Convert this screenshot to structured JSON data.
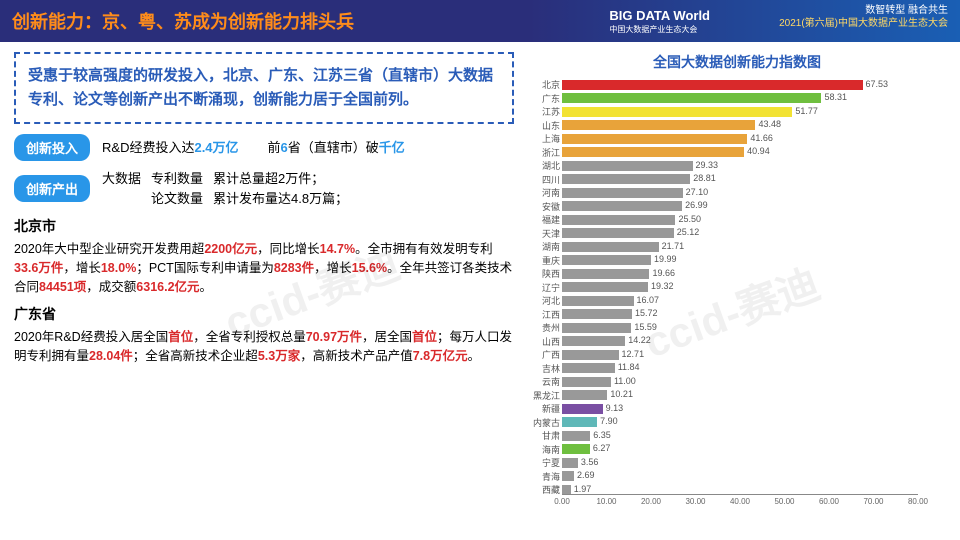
{
  "header": {
    "title": "创新能力：京、粤、苏成为创新能力排头兵",
    "logo_top": "BIG DATA World",
    "logo_sub": "中国大数据产业生态大会",
    "r1": "数智转型 融合共生",
    "r2": "2021(第六届)中国大数据产业生态大会"
  },
  "note": "受惠于较高强度的研发投入，北京、广东、江苏三省（直辖市）大数据专利、论文等创新产出不断涌现，创新能力居于全国前列。",
  "row1": {
    "tag": "创新投入",
    "t1": "R&D经费投入达",
    "v1": "2.4万亿",
    "t2": "前",
    "v2": "6",
    "t3": "省（直辖市）破",
    "v3": "千亿"
  },
  "row2": {
    "tag": "创新产出",
    "pre": "大数据",
    "l1": "专利数量",
    "l2": "论文数量",
    "r1": "累计总量超2万件；",
    "r2": "累计发布量达4.8万篇；"
  },
  "bj": {
    "name": "北京市",
    "p1a": "2020年大中型企业研究开发费用超",
    "v1": "2200亿元",
    "p1b": "，同比增长",
    "v2": "14.7%",
    "p1c": "。全市拥有有效发明专利",
    "v3": "33.6万件",
    "p1d": "，增长",
    "v4": "18.0%",
    "p1e": "；PCT国际专利申请量为",
    "v5": "8283件",
    "p1f": "，增长",
    "v6": "15.6%",
    "p1g": "。全年共签订各类技术合同",
    "v7": "84451项",
    "p1h": "，成交额",
    "v8": "6316.2亿元",
    "p1i": "。"
  },
  "gd": {
    "name": "广东省",
    "p1a": "2020年R&D经费投入居全国",
    "v1": "首位",
    "p1b": "，全省专利授权总量",
    "v2": "70.97万件",
    "p1c": "，居全国",
    "v3": "首位",
    "p1d": "；每万人口发明专利拥有量",
    "v4": "28.04件",
    "p1e": "；全省高新技术企业超",
    "v5": "5.3万家",
    "p1f": "，高新技术产品产值",
    "v6": "7.8万亿元",
    "p1g": "。"
  },
  "chart": {
    "title": "全国大数据创新能力指数图",
    "xmax": 80,
    "ticks": [
      0,
      10,
      20,
      30,
      40,
      50,
      60,
      70,
      80
    ],
    "tick_labels": [
      "0.00",
      "10.00",
      "20.00",
      "30.00",
      "40.00",
      "50.00",
      "60.00",
      "70.00",
      "80.00"
    ],
    "bars": [
      {
        "label": "北京",
        "value": 67.53,
        "color": "#d9292b"
      },
      {
        "label": "广东",
        "value": 58.31,
        "color": "#6fbf3f"
      },
      {
        "label": "江苏",
        "value": 51.77,
        "color": "#f2e233"
      },
      {
        "label": "山东",
        "value": 43.48,
        "color": "#e8a33a"
      },
      {
        "label": "上海",
        "value": 41.66,
        "color": "#e8a33a"
      },
      {
        "label": "浙江",
        "value": 40.94,
        "color": "#e8a33a"
      },
      {
        "label": "湖北",
        "value": 29.33,
        "color": "#999"
      },
      {
        "label": "四川",
        "value": 28.81,
        "color": "#999"
      },
      {
        "label": "河南",
        "value": 27.1,
        "color": "#999"
      },
      {
        "label": "安徽",
        "value": 26.99,
        "color": "#999"
      },
      {
        "label": "福建",
        "value": 25.5,
        "color": "#999"
      },
      {
        "label": "天津",
        "value": 25.12,
        "color": "#999"
      },
      {
        "label": "湖南",
        "value": 21.71,
        "color": "#999"
      },
      {
        "label": "重庆",
        "value": 19.99,
        "color": "#999"
      },
      {
        "label": "陕西",
        "value": 19.66,
        "color": "#999"
      },
      {
        "label": "辽宁",
        "value": 19.32,
        "color": "#999"
      },
      {
        "label": "河北",
        "value": 16.07,
        "color": "#999"
      },
      {
        "label": "江西",
        "value": 15.72,
        "color": "#999"
      },
      {
        "label": "贵州",
        "value": 15.59,
        "color": "#999"
      },
      {
        "label": "山西",
        "value": 14.22,
        "color": "#999"
      },
      {
        "label": "广西",
        "value": 12.71,
        "color": "#999"
      },
      {
        "label": "吉林",
        "value": 11.84,
        "color": "#999"
      },
      {
        "label": "云南",
        "value": 11.0,
        "color": "#999"
      },
      {
        "label": "黑龙江",
        "value": 10.21,
        "color": "#999"
      },
      {
        "label": "新疆",
        "value": 9.13,
        "color": "#7a4fa3"
      },
      {
        "label": "内蒙古",
        "value": 7.9,
        "color": "#5fb8b8"
      },
      {
        "label": "甘肃",
        "value": 6.35,
        "color": "#999"
      },
      {
        "label": "海南",
        "value": 6.27,
        "color": "#6fbf3f"
      },
      {
        "label": "宁夏",
        "value": 3.56,
        "color": "#999"
      },
      {
        "label": "青海",
        "value": 2.69,
        "color": "#999"
      },
      {
        "label": "西藏",
        "value": 1.97,
        "color": "#999"
      }
    ]
  },
  "watermark": "ccid-赛迪"
}
